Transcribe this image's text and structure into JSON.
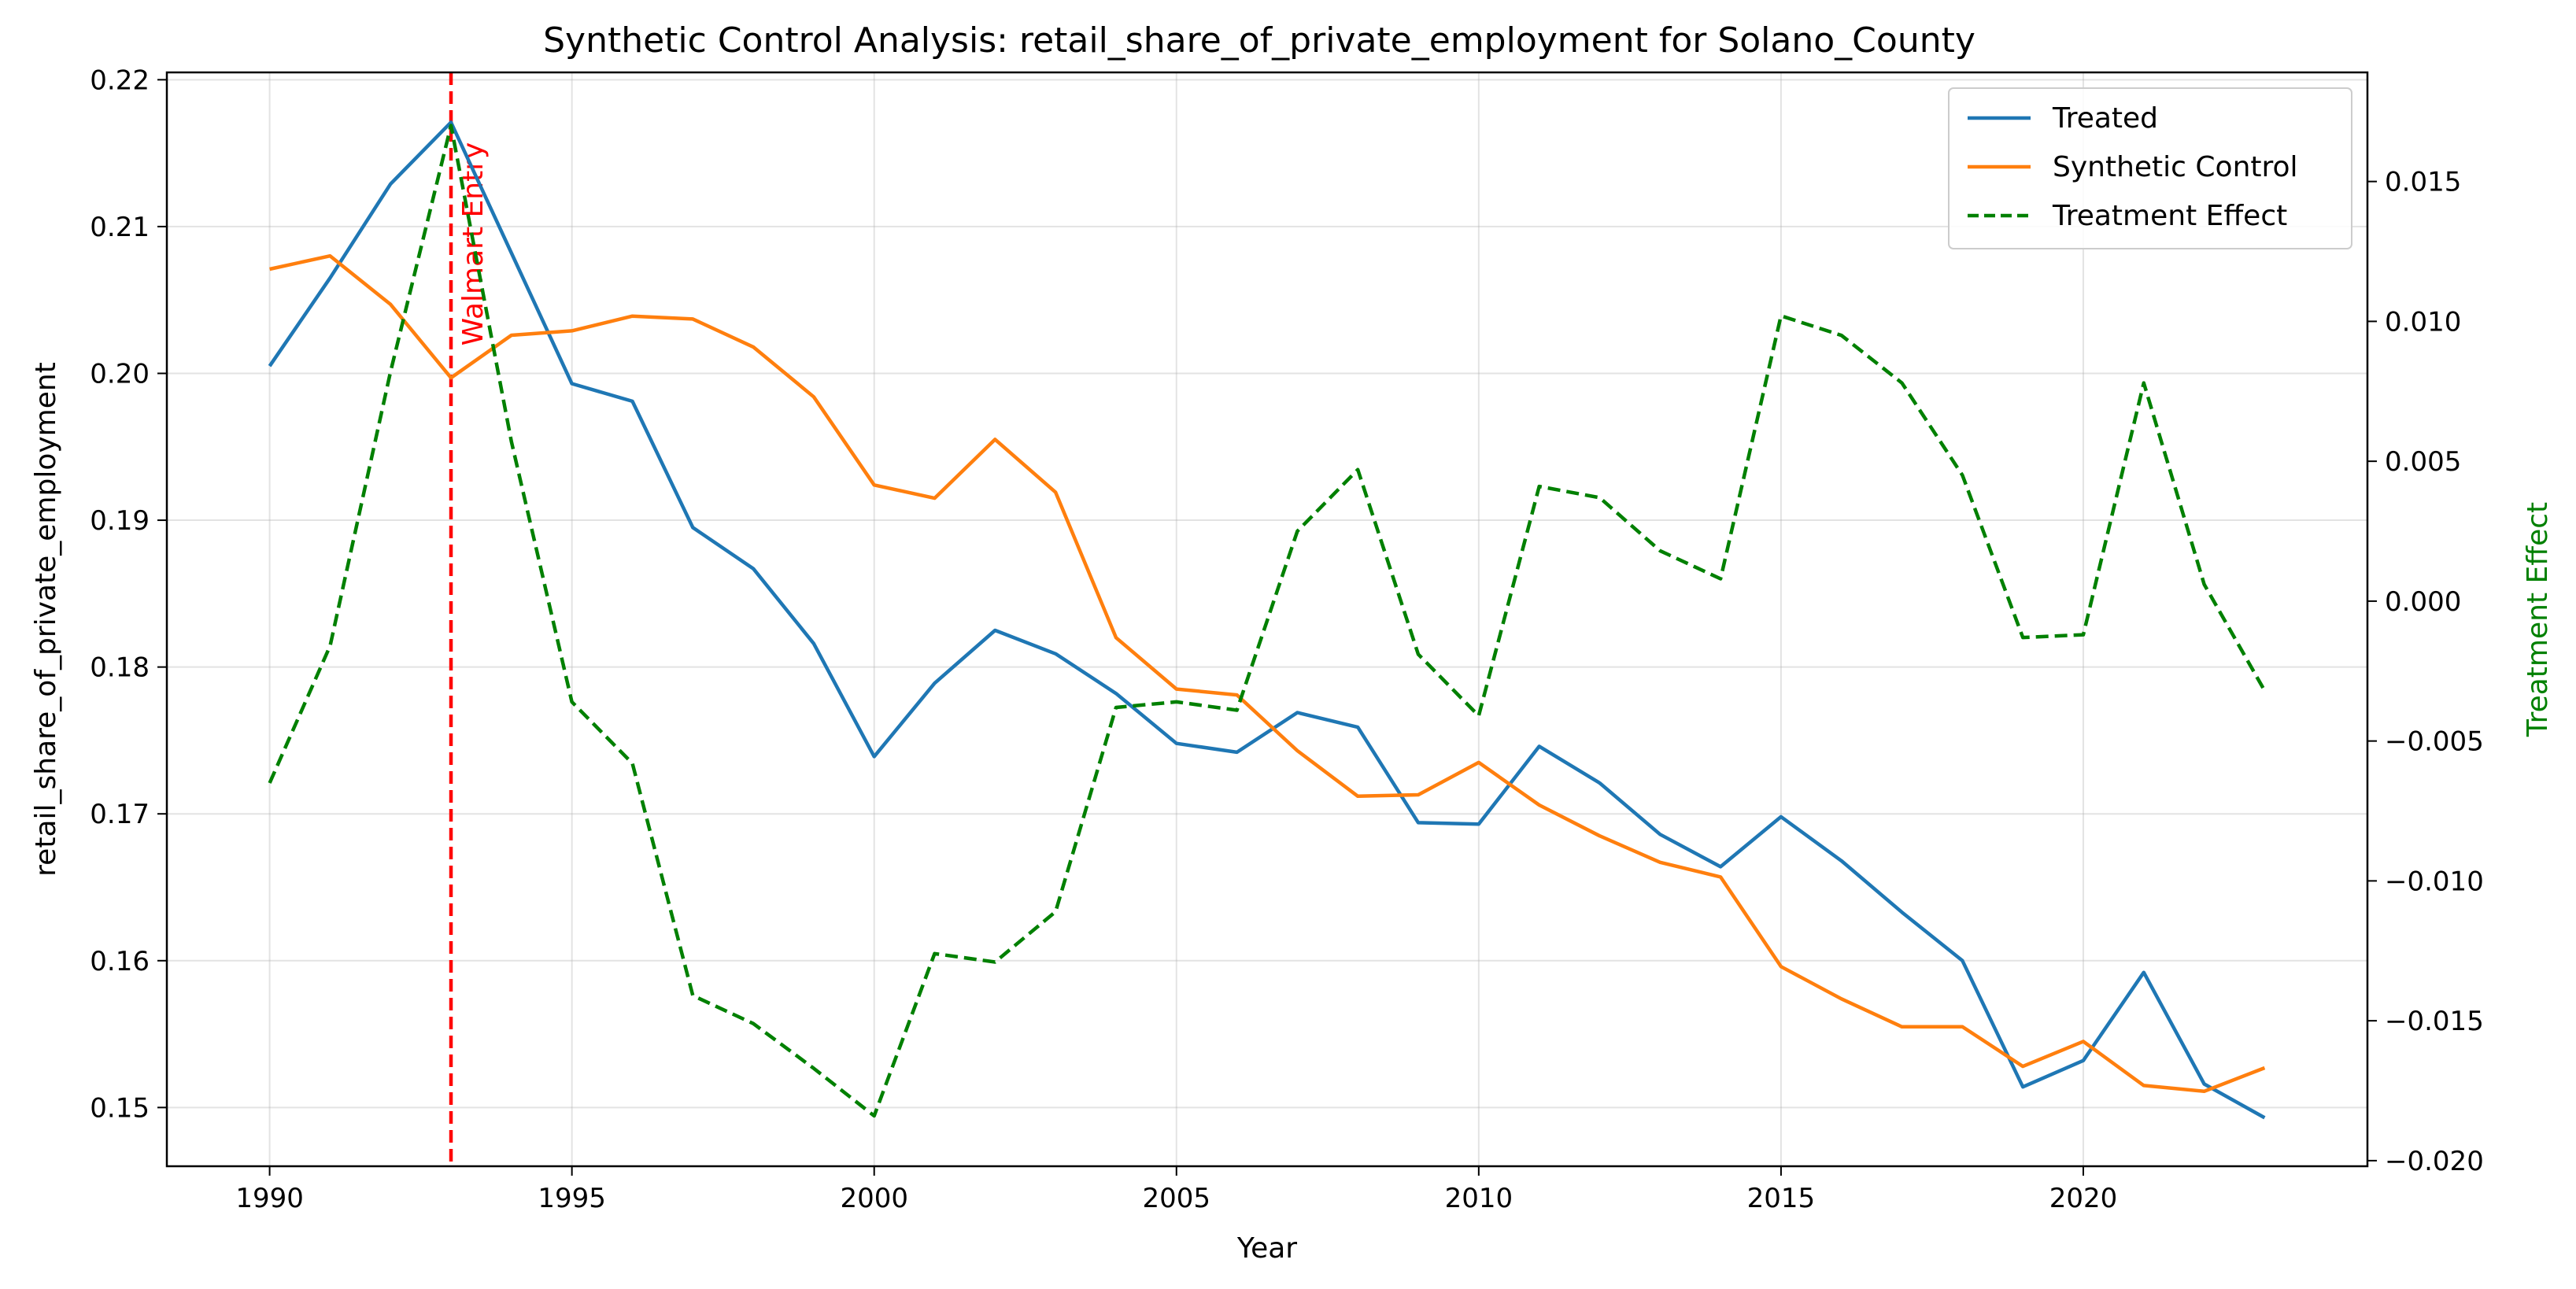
{
  "chart_data": {
    "type": "line",
    "title": "Synthetic Control Analysis: retail_share_of_private_employment for Solano_County",
    "xlabel": "Year",
    "ylabel": "retail_share_of_private_employment",
    "y2label": "Treatment Effect",
    "xlim": [
      1988.3,
      2024.7
    ],
    "ylim": [
      0.146,
      0.2205
    ],
    "y2lim": [
      -0.0202,
      0.0189
    ],
    "x_ticks": [
      1990,
      1995,
      2000,
      2005,
      2010,
      2015,
      2020
    ],
    "y_ticks": [
      0.15,
      0.16,
      0.17,
      0.18,
      0.19,
      0.2,
      0.21,
      0.22
    ],
    "y2_ticks": [
      -0.02,
      -0.015,
      -0.01,
      -0.005,
      0.0,
      0.005,
      0.01,
      0.015
    ],
    "grid": true,
    "legend_position": "top-right",
    "x": [
      1990,
      1991,
      1992,
      1993,
      1994,
      1995,
      1996,
      1997,
      1998,
      1999,
      2000,
      2001,
      2002,
      2003,
      2004,
      2005,
      2006,
      2007,
      2008,
      2009,
      2010,
      2011,
      2012,
      2013,
      2014,
      2015,
      2016,
      2017,
      2018,
      2019,
      2020,
      2021,
      2022,
      2023
    ],
    "series": [
      {
        "name": "Treated",
        "axis": "left",
        "color": "#1f77b4",
        "style": "solid",
        "values": [
          0.2005,
          0.2065,
          0.2129,
          0.2171,
          0.2082,
          0.1993,
          0.1981,
          0.1895,
          0.1867,
          0.1816,
          0.1739,
          0.1789,
          0.1825,
          0.1809,
          0.1782,
          0.1748,
          0.1742,
          0.1769,
          0.1759,
          0.1694,
          0.1693,
          0.1746,
          0.1721,
          0.1686,
          0.1664,
          0.1698,
          0.1668,
          0.1633,
          0.16,
          0.1514,
          0.1532,
          0.1592,
          0.1516,
          0.1493
        ]
      },
      {
        "name": "Synthetic Control",
        "axis": "left",
        "color": "#ff7f0e",
        "style": "solid",
        "values": [
          0.2071,
          0.208,
          0.2047,
          0.1997,
          0.2026,
          0.2029,
          0.2039,
          0.2037,
          0.2018,
          0.1984,
          0.1924,
          0.1915,
          0.1955,
          0.1919,
          0.182,
          0.1785,
          0.1781,
          0.1743,
          0.1712,
          0.1713,
          0.1735,
          0.1706,
          0.1685,
          0.1667,
          0.1657,
          0.1596,
          0.1574,
          0.1555,
          0.1555,
          0.1528,
          0.1545,
          0.1515,
          0.1511,
          0.1527
        ]
      },
      {
        "name": "Treatment Effect",
        "axis": "right",
        "color": "#008000",
        "style": "dashed",
        "values": [
          -0.0065,
          -0.0016,
          0.0082,
          0.017,
          0.0057,
          -0.0036,
          -0.0058,
          -0.0141,
          -0.0151,
          -0.0167,
          -0.0184,
          -0.0126,
          -0.0129,
          -0.0111,
          -0.0038,
          -0.0036,
          -0.0039,
          0.0025,
          0.0047,
          -0.0019,
          -0.0041,
          0.0041,
          0.0037,
          0.0018,
          0.0008,
          0.0102,
          0.0095,
          0.0078,
          0.0045,
          -0.0013,
          -0.0012,
          0.0078,
          0.0006,
          -0.0032
        ]
      }
    ],
    "annotations": [
      {
        "text": "Walmart Entry",
        "x": 1993,
        "color": "#ff0000",
        "style": "dashed-vertical-line"
      }
    ]
  }
}
